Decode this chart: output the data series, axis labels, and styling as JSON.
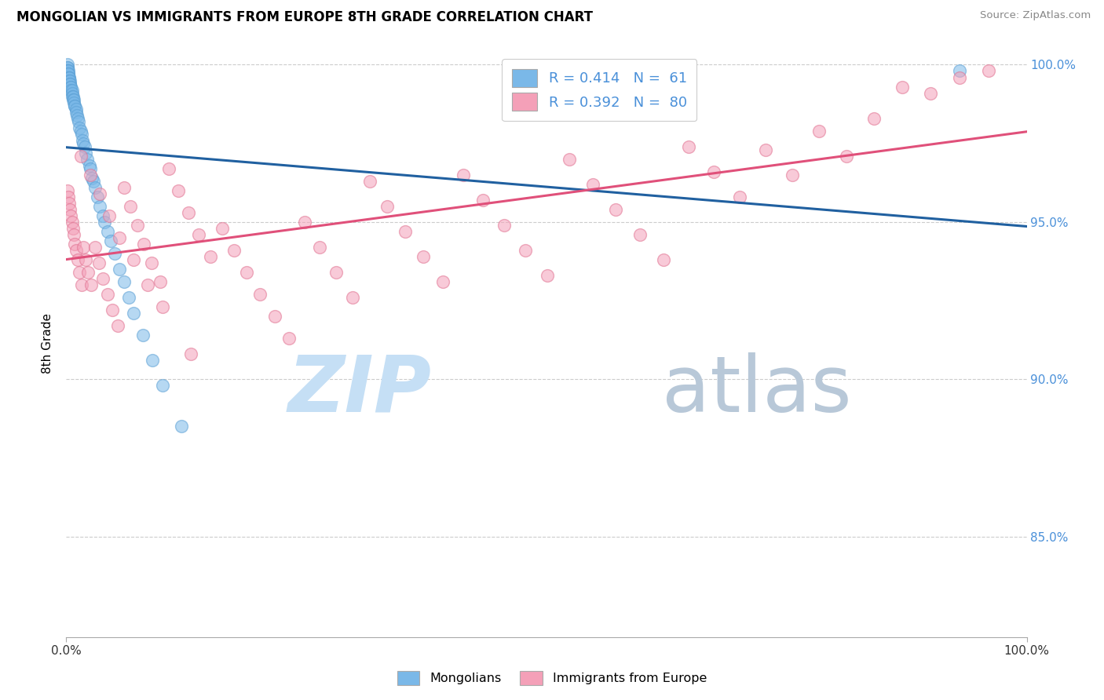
{
  "title": "MONGOLIAN VS IMMIGRANTS FROM EUROPE 8TH GRADE CORRELATION CHART",
  "source": "Source: ZipAtlas.com",
  "ylabel": "8th Grade",
  "y_tick_positions": [
    0.85,
    0.9,
    0.95,
    1.0
  ],
  "y_tick_labels": [
    "85.0%",
    "90.0%",
    "95.0%",
    "100.0%"
  ],
  "xlim": [
    0.0,
    1.0
  ],
  "ylim": [
    0.818,
    1.005
  ],
  "legend_blue_label": "R = 0.414   N =  61",
  "legend_pink_label": "R = 0.392   N =  80",
  "legend_blue_label2": "Mongolians",
  "legend_pink_label2": "Immigrants from Europe",
  "blue_color": "#7ab8e8",
  "blue_edge_color": "#5a9fd4",
  "pink_color": "#f4a0b8",
  "pink_edge_color": "#e07090",
  "blue_line_color": "#2060a0",
  "pink_line_color": "#e0507a",
  "watermark_zip_color": "#c5dff5",
  "watermark_atlas_color": "#b8c8d8",
  "grid_color": "#cccccc",
  "right_axis_color": "#4a90d9",
  "mongolian_x": [
    0.001,
    0.001,
    0.001,
    0.001,
    0.001,
    0.002,
    0.002,
    0.002,
    0.002,
    0.003,
    0.003,
    0.003,
    0.004,
    0.004,
    0.004,
    0.005,
    0.005,
    0.005,
    0.006,
    0.006,
    0.006,
    0.007,
    0.007,
    0.008,
    0.008,
    0.009,
    0.009,
    0.01,
    0.01,
    0.011,
    0.012,
    0.013,
    0.014,
    0.015,
    0.016,
    0.017,
    0.018,
    0.019,
    0.02,
    0.022,
    0.024,
    0.025,
    0.027,
    0.028,
    0.03,
    0.032,
    0.035,
    0.038,
    0.04,
    0.043,
    0.046,
    0.05,
    0.055,
    0.06,
    0.065,
    0.07,
    0.08,
    0.09,
    0.1,
    0.12,
    0.93
  ],
  "mongolian_y": [
    1.0,
    0.999,
    0.999,
    0.998,
    0.998,
    0.998,
    0.997,
    0.997,
    0.996,
    0.996,
    0.996,
    0.995,
    0.995,
    0.994,
    0.994,
    0.993,
    0.993,
    0.992,
    0.992,
    0.991,
    0.99,
    0.99,
    0.989,
    0.989,
    0.988,
    0.987,
    0.987,
    0.986,
    0.985,
    0.984,
    0.983,
    0.982,
    0.98,
    0.979,
    0.978,
    0.976,
    0.975,
    0.974,
    0.972,
    0.97,
    0.968,
    0.967,
    0.964,
    0.963,
    0.961,
    0.958,
    0.955,
    0.952,
    0.95,
    0.947,
    0.944,
    0.94,
    0.935,
    0.931,
    0.926,
    0.921,
    0.914,
    0.906,
    0.898,
    0.885,
    0.998
  ],
  "europe_x": [
    0.001,
    0.002,
    0.003,
    0.004,
    0.005,
    0.006,
    0.007,
    0.008,
    0.009,
    0.01,
    0.012,
    0.014,
    0.016,
    0.018,
    0.02,
    0.023,
    0.026,
    0.03,
    0.034,
    0.038,
    0.043,
    0.048,
    0.054,
    0.06,
    0.067,
    0.074,
    0.081,
    0.089,
    0.098,
    0.107,
    0.117,
    0.127,
    0.138,
    0.15,
    0.162,
    0.175,
    0.188,
    0.202,
    0.217,
    0.232,
    0.248,
    0.264,
    0.281,
    0.298,
    0.316,
    0.334,
    0.353,
    0.372,
    0.392,
    0.413,
    0.434,
    0.456,
    0.478,
    0.501,
    0.524,
    0.548,
    0.572,
    0.597,
    0.622,
    0.648,
    0.674,
    0.701,
    0.728,
    0.756,
    0.784,
    0.812,
    0.841,
    0.87,
    0.9,
    0.93,
    0.015,
    0.025,
    0.035,
    0.045,
    0.055,
    0.07,
    0.085,
    0.1,
    0.13,
    0.96
  ],
  "europe_y": [
    0.96,
    0.958,
    0.956,
    0.954,
    0.952,
    0.95,
    0.948,
    0.946,
    0.943,
    0.941,
    0.938,
    0.934,
    0.93,
    0.942,
    0.938,
    0.934,
    0.93,
    0.942,
    0.937,
    0.932,
    0.927,
    0.922,
    0.917,
    0.961,
    0.955,
    0.949,
    0.943,
    0.937,
    0.931,
    0.967,
    0.96,
    0.953,
    0.946,
    0.939,
    0.948,
    0.941,
    0.934,
    0.927,
    0.92,
    0.913,
    0.95,
    0.942,
    0.934,
    0.926,
    0.963,
    0.955,
    0.947,
    0.939,
    0.931,
    0.965,
    0.957,
    0.949,
    0.941,
    0.933,
    0.97,
    0.962,
    0.954,
    0.946,
    0.938,
    0.974,
    0.966,
    0.958,
    0.973,
    0.965,
    0.979,
    0.971,
    0.983,
    0.993,
    0.991,
    0.996,
    0.971,
    0.965,
    0.959,
    0.952,
    0.945,
    0.938,
    0.93,
    0.923,
    0.908,
    0.998
  ]
}
